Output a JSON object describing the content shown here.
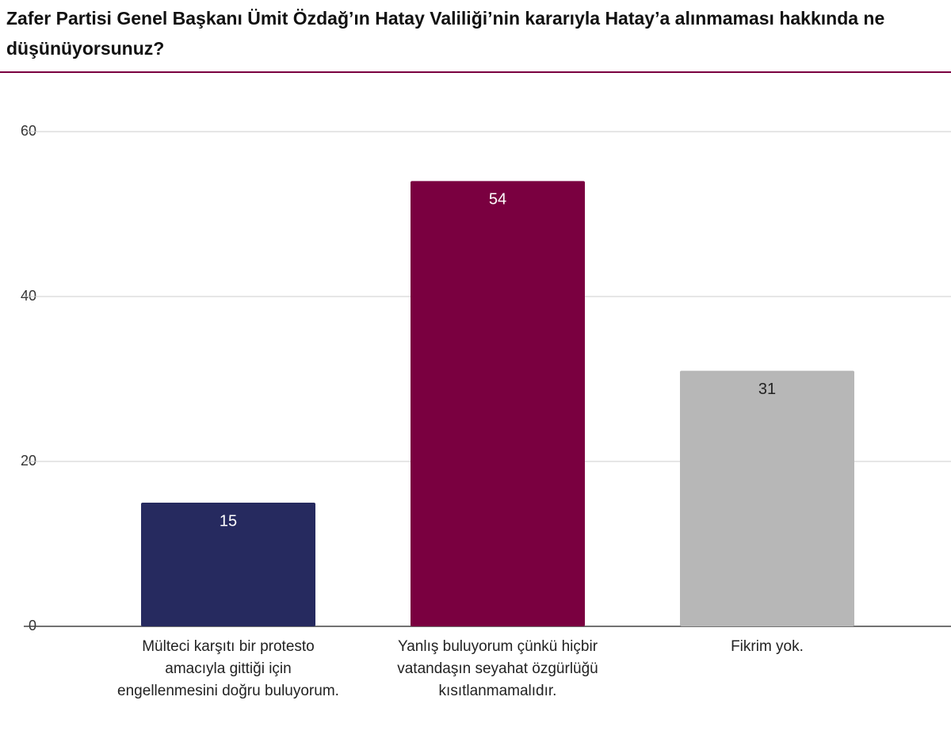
{
  "chart_data": {
    "type": "bar",
    "title": "Zafer Partisi Genel Başkanı Ümit Özdağ’ın Hatay Valiliği’nin kararıyla Hatay’a alınmaması hakkında ne düşünüyorsunuz?",
    "categories": [
      "Mülteci karşıtı bir protesto amacıyla gittiği için engellenmesini doğru buluyorum.",
      "Yanlış buluyorum çünkü hiçbir vatandaşın seyahat özgürlüğü kısıtlanmamalıdır.",
      "Fikrim yok."
    ],
    "values": [
      15,
      54,
      31
    ],
    "colors": [
      "#262a5f",
      "#7a0040",
      "#b7b7b7"
    ],
    "ylim": [
      0,
      60
    ],
    "yticks": [
      0,
      20,
      40,
      60
    ],
    "grid": true
  }
}
